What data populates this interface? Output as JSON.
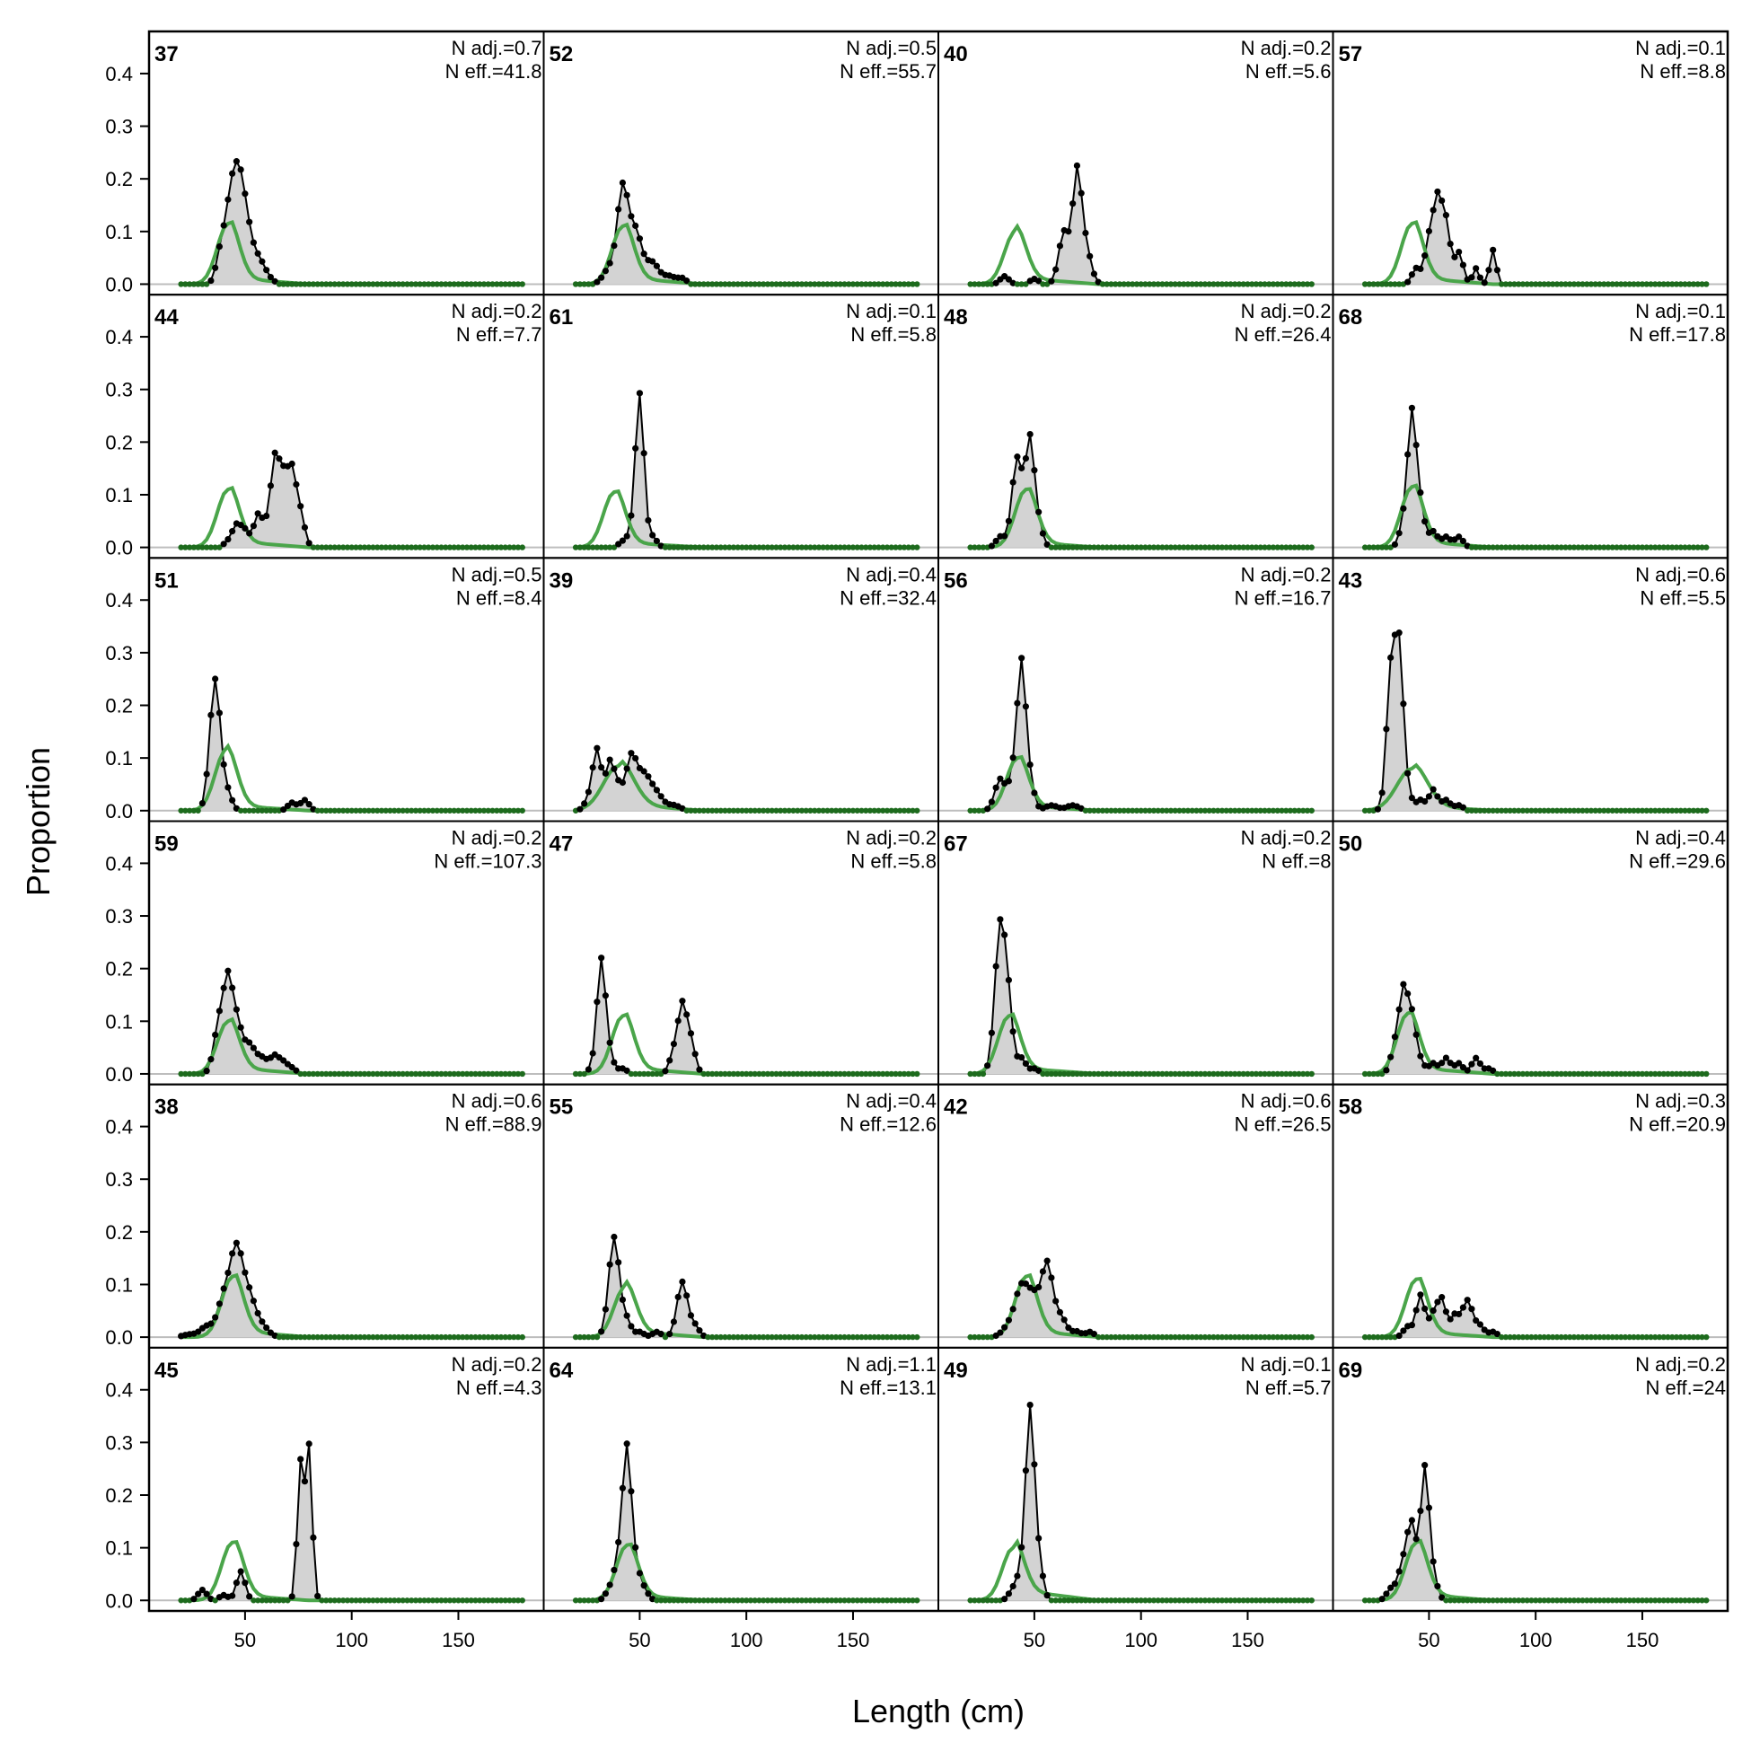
{
  "chart_data": {
    "type": "line",
    "xlabel": "Length (cm)",
    "ylabel": "Proportion",
    "xlim": [
      5,
      190
    ],
    "ylim": [
      -0.02,
      0.48
    ],
    "yticks": [
      "0.0",
      "0.1",
      "0.2",
      "0.3",
      "0.4"
    ],
    "ytick_values": [
      0,
      0.1,
      0.2,
      0.3,
      0.4
    ],
    "xticks": [
      "50",
      "100",
      "150"
    ],
    "xtick_values": [
      50,
      100,
      150
    ],
    "x_range": [
      20,
      180
    ],
    "x_step": 2,
    "colors": {
      "observed_fill": "#d3d3d3",
      "observed_line": "#000000",
      "expected_line": "#4aa54a",
      "zero_dot": "#1d6b1d",
      "baseline": "#bdbdbd"
    },
    "panels": [
      {
        "label": "37",
        "n_adj": "N adj.=0.7",
        "n_eff": "N eff.=41.8",
        "observed_peaks": [
          [
            38,
            0.03,
            2
          ],
          [
            42,
            0.09,
            3
          ],
          [
            46,
            0.155,
            3
          ],
          [
            50,
            0.1,
            3
          ],
          [
            56,
            0.04,
            3
          ],
          [
            60,
            0.01,
            3
          ]
        ],
        "expected": {
          "mean": 42,
          "sd": 5,
          "peak": 0.115,
          "tail": 0.012,
          "tail_end": 80
        }
      },
      {
        "label": "44",
        "n_adj": "N adj.=0.2",
        "n_eff": "N eff.=7.7",
        "observed_peaks": [
          [
            42,
            0.01,
            2
          ],
          [
            46,
            0.04,
            2
          ],
          [
            50,
            0.03,
            2
          ],
          [
            56,
            0.06,
            2
          ],
          [
            60,
            0.03,
            2
          ],
          [
            64,
            0.16,
            2
          ],
          [
            68,
            0.115,
            2
          ],
          [
            72,
            0.135,
            2
          ],
          [
            76,
            0.06,
            2
          ]
        ],
        "expected": {
          "mean": 42,
          "sd": 5,
          "peak": 0.11,
          "tail": 0.012,
          "tail_end": 80
        }
      },
      {
        "label": "51",
        "n_adj": "N adj.=0.5",
        "n_eff": "N eff.=8.4",
        "observed_peaks": [
          [
            36,
            0.25,
            2.5
          ],
          [
            42,
            0.03,
            2
          ],
          [
            72,
            0.015,
            2
          ],
          [
            78,
            0.02,
            2
          ]
        ],
        "expected": {
          "mean": 41,
          "sd": 5,
          "peak": 0.115,
          "tail": 0.01,
          "tail_end": 80
        }
      },
      {
        "label": "59",
        "n_adj": "N adj.=0.2",
        "n_eff": "N eff.=107.3",
        "observed_peaks": [
          [
            38,
            0.1,
            2.5
          ],
          [
            42,
            0.14,
            2
          ],
          [
            46,
            0.1,
            2.5
          ],
          [
            52,
            0.05,
            2.5
          ],
          [
            58,
            0.03,
            3
          ],
          [
            64,
            0.03,
            2
          ],
          [
            68,
            0.02,
            2
          ],
          [
            72,
            0.01,
            2
          ]
        ],
        "expected": {
          "mean": 42,
          "sd": 5,
          "peak": 0.1,
          "tail": 0.012,
          "tail_end": 80
        }
      },
      {
        "label": "38",
        "n_adj": "N adj.=0.6",
        "n_eff": "N eff.=88.9",
        "observed_peaks": [
          [
            24,
            0.005,
            3
          ],
          [
            32,
            0.02,
            3
          ],
          [
            40,
            0.07,
            3
          ],
          [
            46,
            0.16,
            3
          ],
          [
            52,
            0.07,
            3
          ],
          [
            58,
            0.02,
            3
          ]
        ],
        "expected": {
          "mean": 44,
          "sd": 5,
          "peak": 0.115,
          "tail": 0.012,
          "tail_end": 80
        }
      },
      {
        "label": "45",
        "n_adj": "N adj.=0.2",
        "n_eff": "N eff.=4.3",
        "observed_peaks": [
          [
            30,
            0.02,
            2
          ],
          [
            40,
            0.01,
            2
          ],
          [
            48,
            0.055,
            2
          ],
          [
            76,
            0.26,
            1.5
          ],
          [
            80,
            0.29,
            1.5
          ]
        ],
        "expected": {
          "mean": 44,
          "sd": 5,
          "peak": 0.11,
          "tail": 0.01,
          "tail_end": 80
        }
      },
      {
        "label": "52",
        "n_adj": "N adj.=0.5",
        "n_eff": "N eff.=55.7",
        "observed_peaks": [
          [
            36,
            0.03,
            3
          ],
          [
            42,
            0.175,
            2.5
          ],
          [
            48,
            0.1,
            3
          ],
          [
            56,
            0.04,
            3
          ],
          [
            64,
            0.015,
            3
          ],
          [
            70,
            0.01,
            2
          ]
        ],
        "expected": {
          "mean": 42,
          "sd": 5,
          "peak": 0.11,
          "tail": 0.012,
          "tail_end": 80
        }
      },
      {
        "label": "61",
        "n_adj": "N adj.=0.1",
        "n_eff": "N eff.=5.8",
        "observed_peaks": [
          [
            42,
            0.01,
            2
          ],
          [
            46,
            0.02,
            2
          ],
          [
            50,
            0.29,
            2
          ],
          [
            56,
            0.02,
            2
          ]
        ],
        "expected": {
          "mean": 38,
          "sd": 5,
          "peak": 0.105,
          "tail": 0.01,
          "tail_end": 80
        }
      },
      {
        "label": "39",
        "n_adj": "N adj.=0.4",
        "n_eff": "N eff.=32.4",
        "observed_peaks": [
          [
            26,
            0.02,
            2
          ],
          [
            30,
            0.115,
            2
          ],
          [
            36,
            0.09,
            2
          ],
          [
            40,
            0.04,
            2
          ],
          [
            46,
            0.1,
            2.5
          ],
          [
            52,
            0.065,
            3
          ],
          [
            58,
            0.03,
            3
          ],
          [
            66,
            0.01,
            3
          ]
        ],
        "expected": {
          "mean": 40,
          "sd": 7,
          "peak": 0.085,
          "tail": 0.012,
          "tail_end": 80
        }
      },
      {
        "label": "47",
        "n_adj": "N adj.=0.2",
        "n_eff": "N eff.=5.8",
        "observed_peaks": [
          [
            28,
            0.01,
            2
          ],
          [
            32,
            0.215,
            2
          ],
          [
            36,
            0.03,
            2
          ],
          [
            42,
            0.01,
            2
          ],
          [
            66,
            0.04,
            2
          ],
          [
            70,
            0.125,
            2
          ],
          [
            74,
            0.06,
            2
          ]
        ],
        "expected": {
          "mean": 42,
          "sd": 5,
          "peak": 0.11,
          "tail": 0.012,
          "tail_end": 80
        }
      },
      {
        "label": "55",
        "n_adj": "N adj.=0.4",
        "n_eff": "N eff.=12.6",
        "observed_peaks": [
          [
            38,
            0.19,
            2.5
          ],
          [
            44,
            0.03,
            2
          ],
          [
            50,
            0.01,
            2
          ],
          [
            58,
            0.01,
            2
          ],
          [
            70,
            0.105,
            2.5
          ],
          [
            76,
            0.02,
            2
          ]
        ],
        "expected": {
          "mean": 43,
          "sd": 5,
          "peak": 0.095,
          "tail": 0.012,
          "tail_end": 80
        }
      },
      {
        "label": "64",
        "n_adj": "N adj.=1.1",
        "n_eff": "N eff.=13.1",
        "observed_peaks": [
          [
            36,
            0.02,
            2
          ],
          [
            40,
            0.07,
            2
          ],
          [
            44,
            0.28,
            2
          ],
          [
            48,
            0.06,
            2
          ],
          [
            52,
            0.02,
            2
          ]
        ],
        "expected": {
          "mean": 44,
          "sd": 5,
          "peak": 0.105,
          "tail": 0.01,
          "tail_end": 80
        }
      },
      {
        "label": "40",
        "n_adj": "N adj.=0.2",
        "n_eff": "N eff.=5.6",
        "observed_peaks": [
          [
            36,
            0.015,
            2
          ],
          [
            50,
            0.01,
            2
          ],
          [
            64,
            0.1,
            2.5
          ],
          [
            70,
            0.2,
            2
          ],
          [
            74,
            0.07,
            2.5
          ]
        ],
        "expected": {
          "mean": 41,
          "sd": 5,
          "peak": 0.1,
          "tail": 0.012,
          "tail_end": 80
        }
      },
      {
        "label": "48",
        "n_adj": "N adj.=0.2",
        "n_eff": "N eff.=26.4",
        "observed_peaks": [
          [
            34,
            0.02,
            2
          ],
          [
            42,
            0.17,
            2.5
          ],
          [
            48,
            0.2,
            2
          ],
          [
            52,
            0.04,
            2
          ]
        ],
        "expected": {
          "mean": 46,
          "sd": 5,
          "peak": 0.11,
          "tail": 0.01,
          "tail_end": 80
        }
      },
      {
        "label": "56",
        "n_adj": "N adj.=0.2",
        "n_eff": "N eff.=16.7",
        "observed_peaks": [
          [
            34,
            0.06,
            2.5
          ],
          [
            40,
            0.06,
            2
          ],
          [
            44,
            0.275,
            2
          ],
          [
            48,
            0.05,
            2
          ],
          [
            58,
            0.01,
            3
          ],
          [
            68,
            0.01,
            3
          ]
        ],
        "expected": {
          "mean": 42,
          "sd": 5,
          "peak": 0.1,
          "tail": 0.01,
          "tail_end": 80
        }
      },
      {
        "label": "67",
        "n_adj": "N adj.=0.2",
        "n_eff": "N eff.=8",
        "observed_peaks": [
          [
            34,
            0.28,
            2.5
          ],
          [
            38,
            0.1,
            2
          ],
          [
            44,
            0.03,
            2
          ],
          [
            50,
            0.01,
            2
          ]
        ],
        "expected": {
          "mean": 38,
          "sd": 5,
          "peak": 0.11,
          "tail": 0.012,
          "tail_end": 80
        }
      },
      {
        "label": "42",
        "n_adj": "N adj.=0.6",
        "n_eff": "N eff.=26.5",
        "observed_peaks": [
          [
            38,
            0.02,
            3
          ],
          [
            44,
            0.09,
            3
          ],
          [
            50,
            0.07,
            3
          ],
          [
            56,
            0.13,
            2.5
          ],
          [
            62,
            0.04,
            3
          ],
          [
            70,
            0.01,
            2
          ],
          [
            76,
            0.01,
            2
          ]
        ],
        "expected": {
          "mean": 46,
          "sd": 5,
          "peak": 0.115,
          "tail": 0.012,
          "tail_end": 80
        }
      },
      {
        "label": "49",
        "n_adj": "N adj.=0.1",
        "n_eff": "N eff.=5.7",
        "observed_peaks": [
          [
            40,
            0.02,
            2
          ],
          [
            44,
            0.05,
            2
          ],
          [
            48,
            0.355,
            2
          ],
          [
            52,
            0.07,
            2
          ]
        ],
        "expected": {
          "mean": 40,
          "sd": 5,
          "peak": 0.1,
          "tail": 0.02,
          "tail_end": 80
        }
      },
      {
        "label": "57",
        "n_adj": "N adj.=0.1",
        "n_eff": "N eff.=8.8",
        "observed_peaks": [
          [
            44,
            0.03,
            2
          ],
          [
            50,
            0.08,
            2
          ],
          [
            54,
            0.15,
            2
          ],
          [
            58,
            0.11,
            2
          ],
          [
            64,
            0.06,
            2
          ],
          [
            72,
            0.03,
            1.5
          ],
          [
            80,
            0.065,
            1.5
          ]
        ],
        "expected": {
          "mean": 42,
          "sd": 5,
          "peak": 0.115,
          "tail": 0.012,
          "tail_end": 80
        }
      },
      {
        "label": "68",
        "n_adj": "N adj.=0.1",
        "n_eff": "N eff.=17.8",
        "observed_peaks": [
          [
            38,
            0.04,
            2
          ],
          [
            42,
            0.25,
            2
          ],
          [
            46,
            0.07,
            2
          ],
          [
            52,
            0.03,
            2
          ],
          [
            58,
            0.02,
            2
          ],
          [
            64,
            0.02,
            2
          ]
        ],
        "expected": {
          "mean": 42,
          "sd": 5,
          "peak": 0.115,
          "tail": 0.012,
          "tail_end": 80
        }
      },
      {
        "label": "43",
        "n_adj": "N adj.=0.6",
        "n_eff": "N eff.=5.5",
        "observed_peaks": [
          [
            32,
            0.25,
            2
          ],
          [
            36,
            0.3,
            2
          ],
          [
            40,
            0.03,
            2
          ],
          [
            46,
            0.02,
            2
          ],
          [
            52,
            0.04,
            2
          ],
          [
            58,
            0.02,
            2
          ],
          [
            64,
            0.01,
            2
          ]
        ],
        "expected": {
          "mean": 42,
          "sd": 7,
          "peak": 0.08,
          "tail": 0.01,
          "tail_end": 80
        }
      },
      {
        "label": "50",
        "n_adj": "N adj.=0.4",
        "n_eff": "N eff.=29.6",
        "observed_peaks": [
          [
            34,
            0.05,
            2
          ],
          [
            38,
            0.15,
            2
          ],
          [
            42,
            0.1,
            2
          ],
          [
            46,
            0.02,
            2
          ],
          [
            52,
            0.02,
            2
          ],
          [
            58,
            0.03,
            2
          ],
          [
            64,
            0.02,
            2
          ],
          [
            72,
            0.03,
            2
          ],
          [
            78,
            0.01,
            2
          ]
        ],
        "expected": {
          "mean": 40,
          "sd": 5,
          "peak": 0.115,
          "tail": 0.012,
          "tail_end": 80
        }
      },
      {
        "label": "58",
        "n_adj": "N adj.=0.3",
        "n_eff": "N eff.=20.9",
        "observed_peaks": [
          [
            40,
            0.02,
            2
          ],
          [
            46,
            0.08,
            2
          ],
          [
            52,
            0.04,
            2
          ],
          [
            56,
            0.07,
            2
          ],
          [
            62,
            0.04,
            2
          ],
          [
            68,
            0.07,
            2.5
          ],
          [
            74,
            0.02,
            2
          ],
          [
            80,
            0.01,
            2
          ]
        ],
        "expected": {
          "mean": 44,
          "sd": 5,
          "peak": 0.11,
          "tail": 0.01,
          "tail_end": 80
        }
      },
      {
        "label": "69",
        "n_adj": "N adj.=0.2",
        "n_eff": "N eff.=24",
        "observed_peaks": [
          [
            32,
            0.02,
            2
          ],
          [
            38,
            0.07,
            2.5
          ],
          [
            42,
            0.13,
            2
          ],
          [
            48,
            0.25,
            2
          ],
          [
            52,
            0.04,
            2
          ]
        ],
        "expected": {
          "mean": 44,
          "sd": 5,
          "peak": 0.11,
          "tail": 0.012,
          "tail_end": 80
        }
      }
    ]
  }
}
